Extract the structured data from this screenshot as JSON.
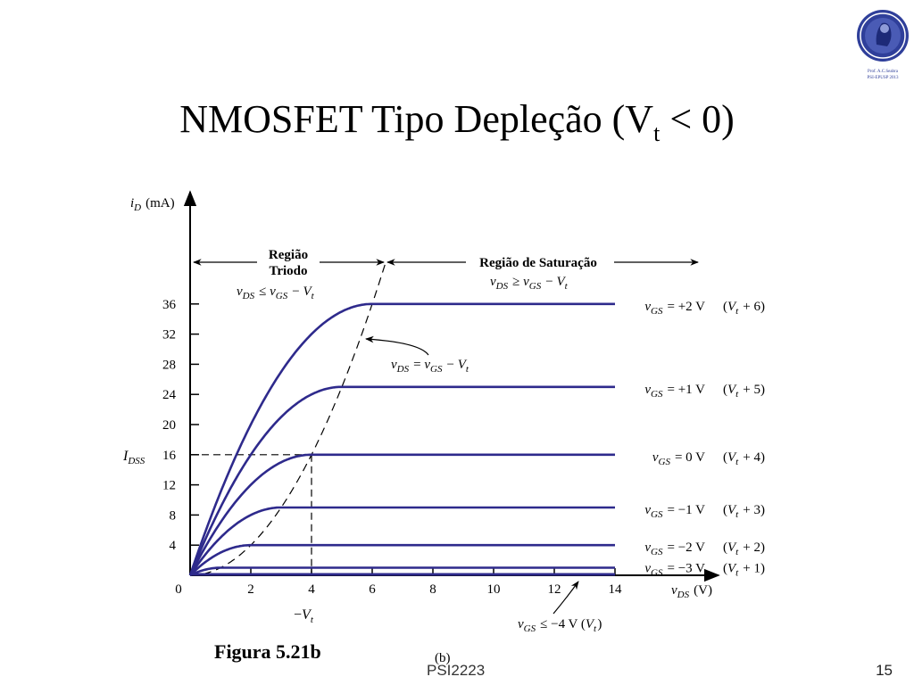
{
  "slide": {
    "title_main": "NMOSFET Tipo Depleção (V",
    "title_sub": "t",
    "title_end": " < 0)",
    "figure_caption": "Figura 5.21b",
    "panel_label": "(b)",
    "course": "PSI2223",
    "page_number": "15",
    "logo_text_line1": "Prof. A.C.Seabra",
    "logo_text_line2": "PSI-EPUSP 2013"
  },
  "chart_data": {
    "type": "line",
    "title": "",
    "xlabel": "v_DS (V)",
    "ylabel": "i_D (mA)",
    "xlim": [
      0,
      17
    ],
    "ylim": [
      0,
      40
    ],
    "xticks": [
      0,
      2,
      4,
      6,
      8,
      10,
      12,
      14
    ],
    "yticks": [
      4,
      8,
      12,
      16,
      20,
      24,
      28,
      32,
      36
    ],
    "Vt": -4,
    "k": 1,
    "series": [
      {
        "vgs_label": "v_GS = +2 V",
        "vt_label": "(V_t + 6)",
        "vov": 6,
        "isat": 36
      },
      {
        "vgs_label": "v_GS = +1 V",
        "vt_label": "(V_t + 5)",
        "vov": 5,
        "isat": 25
      },
      {
        "vgs_label": "v_GS = 0 V",
        "vt_label": "(V_t + 4)",
        "vov": 4,
        "isat": 16
      },
      {
        "vgs_label": "v_GS = −1 V",
        "vt_label": "(V_t + 3)",
        "vov": 3,
        "isat": 9
      },
      {
        "vgs_label": "v_GS = −2 V",
        "vt_label": "(V_t + 2)",
        "vov": 2,
        "isat": 4
      },
      {
        "vgs_label": "v_GS = −3 V",
        "vt_label": "(V_t + 1)",
        "vov": 1,
        "isat": 1
      }
    ],
    "cutoff_label": "v_GS ≤ −4 V (V_t)",
    "boundary_curve_label": "v_DS = v_GS − V_t",
    "regions": {
      "triode_title_1": "Região",
      "triode_title_2": "Triodo",
      "triode_condition": "v_DS ≤ v_GS − V_t",
      "saturation_title": "Região de Saturação",
      "saturation_condition": "v_DS ≥ v_GS − V_t"
    },
    "idss_label": "I_DSS",
    "idss_value": 16,
    "neg_vt_label": "−V_t",
    "colors": {
      "curves": "#2e2a8c",
      "axes": "#000000",
      "dashed": "#000000"
    }
  }
}
